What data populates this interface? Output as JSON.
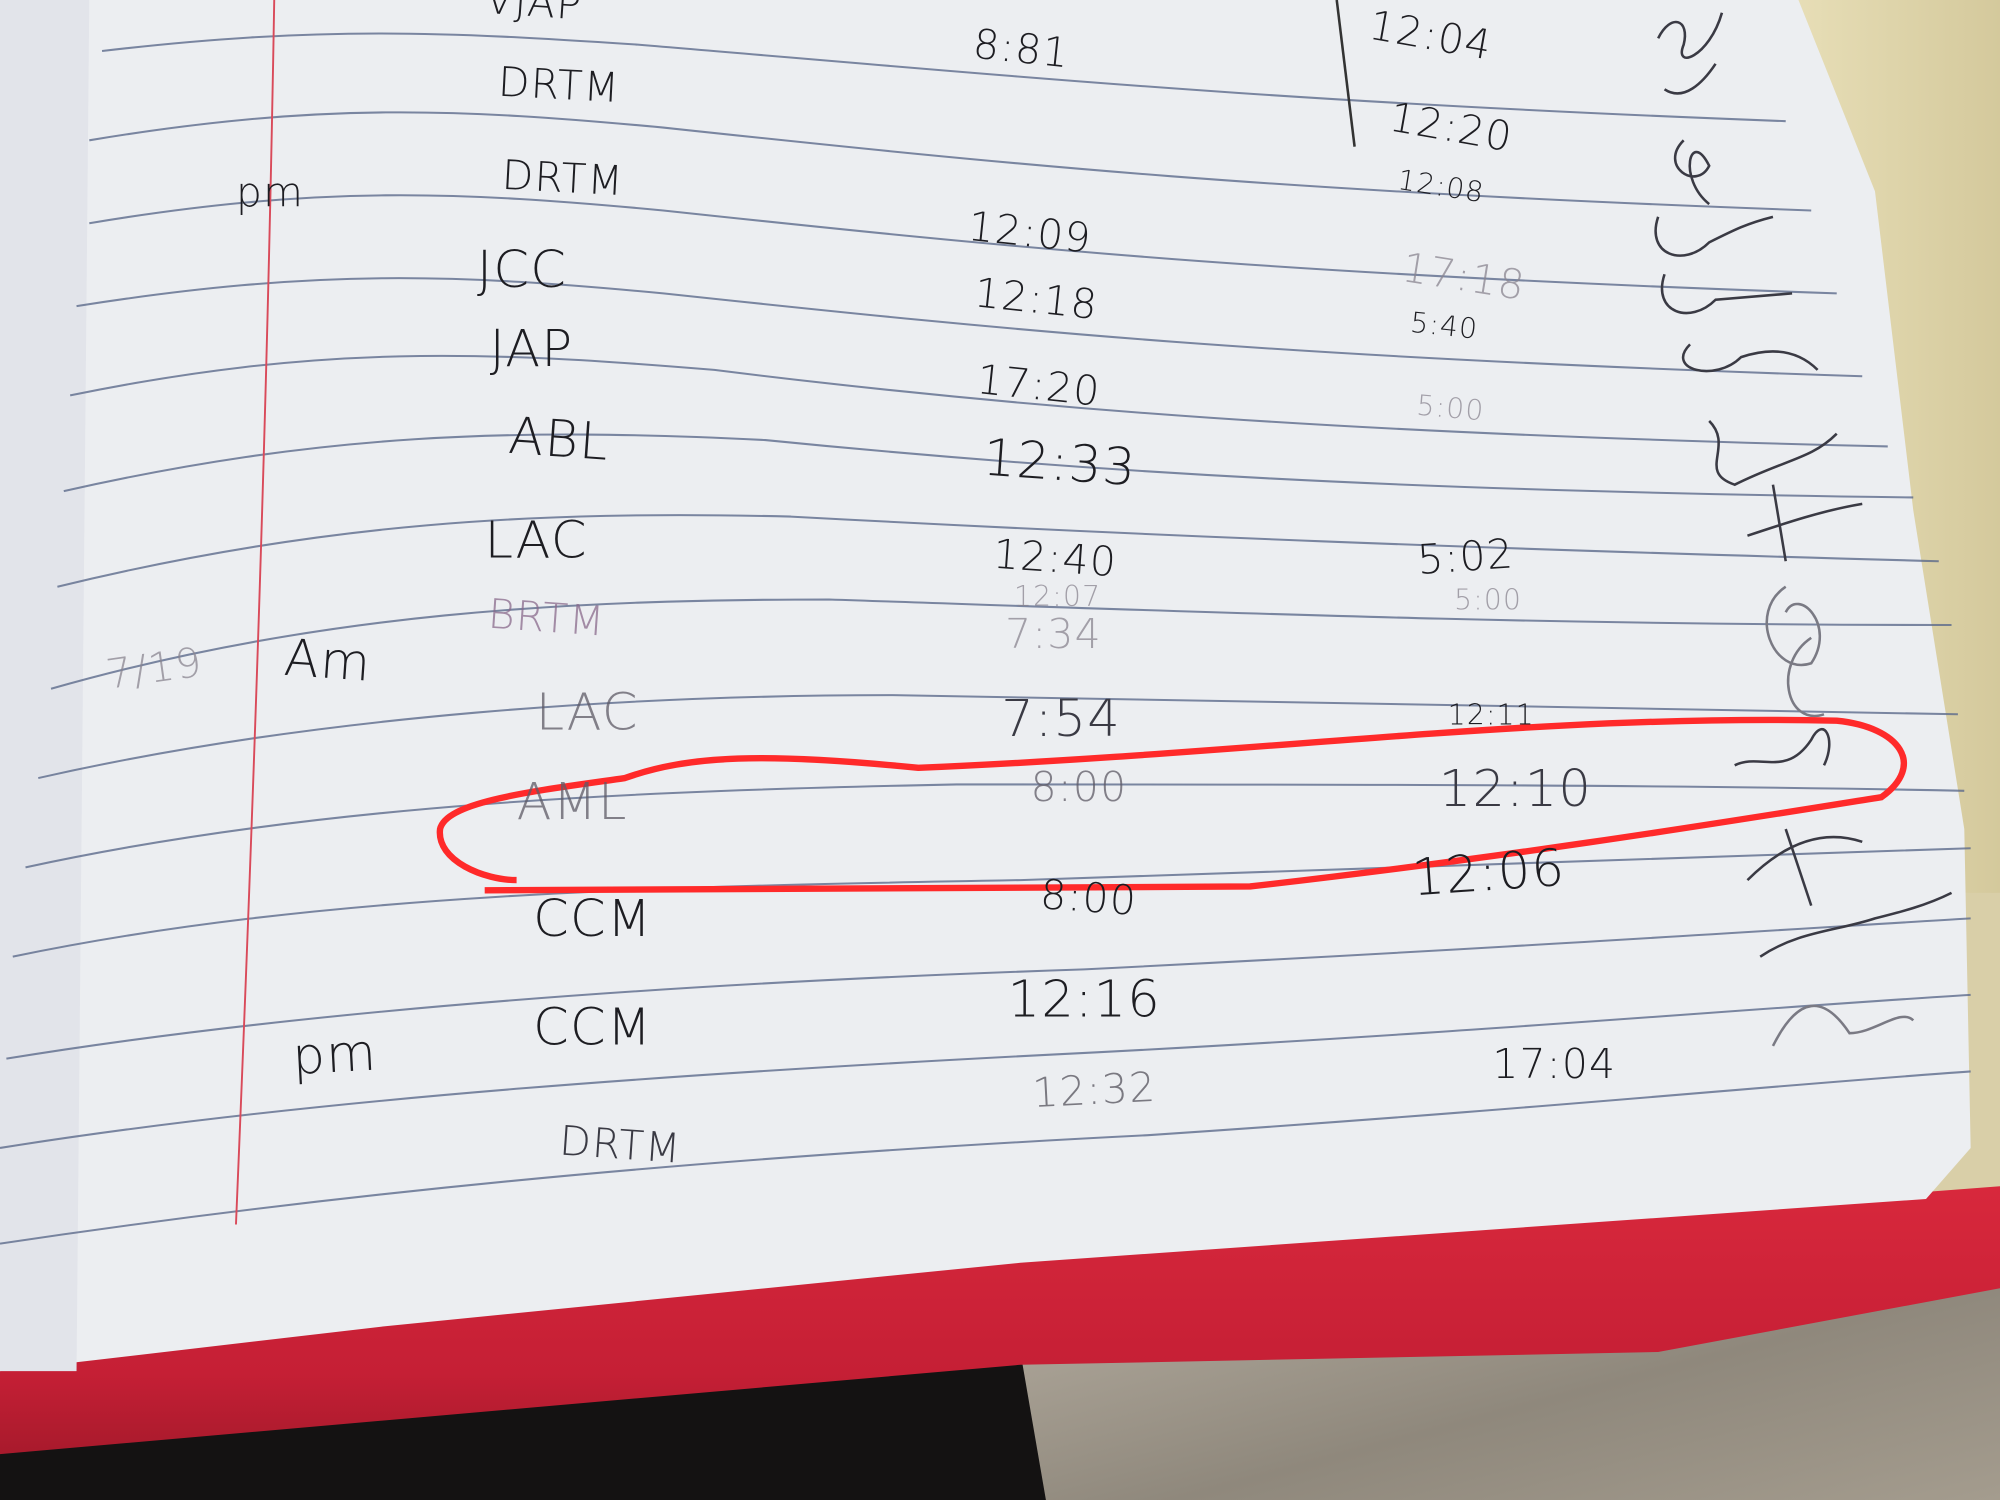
{
  "date_label": "7/19",
  "entries": [
    {
      "period": "",
      "initials": "VJAP",
      "time_in": "8:81",
      "time_out": "12:04"
    },
    {
      "period": "",
      "initials": "DRTM",
      "time_in": "",
      "time_out": "12:20"
    },
    {
      "period": "pm",
      "initials": "DRTM",
      "time_in": "12:09",
      "time_out": "12:08"
    },
    {
      "period": "",
      "initials": "JCC",
      "time_in": "12:18",
      "time_out": "17:18"
    },
    {
      "period": "",
      "initials": "",
      "time_in": "",
      "time_out": "5:40"
    },
    {
      "period": "",
      "initials": "JAP",
      "time_in": "17:20",
      "time_out": "5:00"
    },
    {
      "period": "",
      "initials": "ABL",
      "time_in": "12:33",
      "time_out": ""
    },
    {
      "period": "",
      "initials": "LAC",
      "time_in": "12:40",
      "time_out": "5:02"
    },
    {
      "period": "",
      "initials": "BRTM",
      "time_in": "12:07",
      "time_out": "5:00"
    },
    {
      "period": "Am",
      "initials": "",
      "time_in": "7:34",
      "time_out": ""
    },
    {
      "period": "",
      "initials": "LAC",
      "time_in": "7:54",
      "time_out": "12:11"
    },
    {
      "period": "",
      "initials": "AML",
      "time_in": "8:00",
      "time_out": "12:10",
      "highlighted": true
    },
    {
      "period": "",
      "initials": "CCM",
      "time_in": "8:00",
      "time_out": "12:06"
    },
    {
      "period": "pm",
      "initials": "CCM",
      "time_in": "12:16",
      "time_out": "17:04"
    },
    {
      "period": "",
      "initials": "DRTM",
      "time_in": "12:32",
      "time_out": ""
    }
  ],
  "colors": {
    "paper": "#eceef2",
    "rule_line": "#5d6b8c",
    "margin_line": "#d94a5a",
    "highlight_circle": "#ff2a2a",
    "ink": "#1d1d22",
    "cover": "#c51f35"
  }
}
